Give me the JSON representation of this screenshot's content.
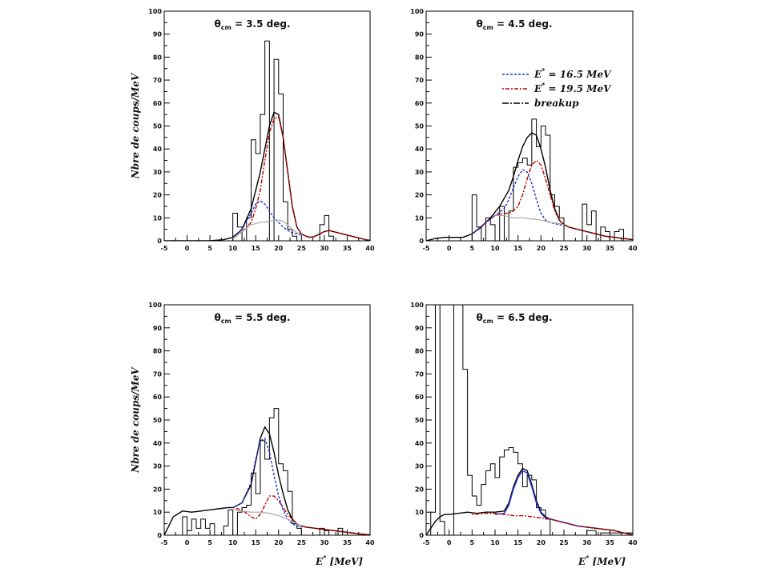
{
  "chart_data": [
    {
      "type": "line",
      "title": "θcm = 3.5 deg.",
      "title_main": "θ",
      "title_sub": "cm",
      "title_rest": " = 3.5 deg.",
      "ylabel": "Nbre de coups/MeV",
      "xlabel": "",
      "xlim": [
        -5,
        40
      ],
      "ylim": [
        0,
        100
      ],
      "xticks": [
        -5,
        0,
        5,
        10,
        15,
        20,
        25,
        30,
        35,
        40
      ],
      "yticks": [
        0,
        10,
        20,
        30,
        40,
        50,
        60,
        70,
        80,
        90,
        100
      ],
      "xtick_labels": [
        "-5",
        "0",
        "5",
        "10",
        "15",
        "20",
        "25",
        "30",
        "35",
        "40"
      ],
      "ytick_labels": [
        "0",
        "10",
        "20",
        "30",
        "40",
        "50",
        "60",
        "70",
        "80",
        "90",
        "100"
      ],
      "hist": {
        "edges": [
          -5,
          10,
          11,
          12,
          13,
          14,
          15,
          16,
          17,
          18,
          19,
          20,
          21,
          22,
          23,
          24,
          25,
          29,
          30,
          31,
          32,
          40
        ],
        "counts": [
          0,
          12,
          6,
          0,
          10,
          44,
          38,
          55,
          87,
          0,
          79,
          64,
          17,
          5,
          2,
          0,
          0,
          7,
          11,
          2,
          0
        ]
      },
      "series": [
        {
          "color": "#000000",
          "dash": "",
          "x": [
            -5,
            0,
            5,
            8,
            10,
            12,
            14,
            16,
            17,
            18,
            19,
            20,
            21,
            22,
            23,
            24,
            25,
            26,
            27,
            28,
            29,
            30,
            31,
            32,
            33,
            34,
            35,
            36,
            37,
            38,
            39,
            40
          ],
          "y": [
            0,
            0,
            0,
            0.5,
            1.5,
            5,
            14,
            30,
            40,
            50,
            56,
            55,
            45,
            30,
            15,
            6,
            3,
            2,
            1.5,
            2,
            3,
            4,
            4.5,
            4,
            3.5,
            3,
            2.5,
            2,
            1.5,
            1,
            0.5,
            0.2
          ]
        },
        {
          "color": "#c00000",
          "dash": "2,2,5,2",
          "x": [
            10,
            12,
            14,
            15,
            16,
            17,
            18,
            19,
            20,
            21,
            22,
            23,
            24,
            25,
            26,
            27,
            28,
            29,
            30,
            31,
            32,
            33,
            34,
            35,
            36,
            37,
            38,
            39,
            40
          ],
          "y": [
            1,
            4,
            8,
            14,
            22,
            35,
            47,
            53,
            54,
            45,
            30,
            15,
            6,
            3,
            2,
            1.5,
            2,
            3,
            4,
            4.5,
            4,
            3.5,
            3,
            2.5,
            2,
            1.5,
            1,
            0.5,
            0.2
          ]
        },
        {
          "color": "#2030d0",
          "dash": "3,2",
          "x": [
            10,
            12,
            14,
            15,
            16,
            17,
            18,
            19,
            20,
            21,
            22,
            23,
            24,
            25
          ],
          "y": [
            1,
            5,
            12,
            16,
            17.5,
            16,
            13,
            10,
            8,
            6,
            4.5,
            3.5,
            3,
            2.5
          ]
        },
        {
          "color": "#a8a8a8",
          "dash": "",
          "x": [
            10,
            12,
            14,
            16,
            18,
            20,
            21,
            22,
            23,
            24,
            25
          ],
          "y": [
            1,
            4,
            7,
            8,
            8.5,
            9,
            8.5,
            7,
            5,
            3.5,
            3
          ]
        }
      ],
      "legend": []
    },
    {
      "type": "line",
      "title": "θcm = 4.5 deg.",
      "title_main": "θ",
      "title_sub": "cm",
      "title_rest": " = 4.5 deg.",
      "ylabel": "",
      "xlabel": "",
      "xlim": [
        -5,
        40
      ],
      "ylim": [
        0,
        100
      ],
      "xticks": [
        -5,
        0,
        5,
        10,
        15,
        20,
        25,
        30,
        35,
        40
      ],
      "yticks": [
        0,
        10,
        20,
        30,
        40,
        50,
        60,
        70,
        80,
        90,
        100
      ],
      "xtick_labels": [
        "-5",
        "0",
        "5",
        "10",
        "15",
        "20",
        "25",
        "30",
        "35",
        "40"
      ],
      "ytick_labels": [
        "0",
        "10",
        "20",
        "30",
        "40",
        "50",
        "60",
        "70",
        "80",
        "90",
        "100"
      ],
      "hist": {
        "edges": [
          -5,
          5,
          6,
          7,
          8,
          9,
          10,
          11,
          12,
          13,
          14,
          15,
          16,
          17,
          18,
          19,
          20,
          21,
          22,
          23,
          24,
          25,
          29,
          30,
          31,
          32,
          33,
          34,
          35,
          36,
          37,
          38,
          40
        ],
        "counts": [
          0,
          20,
          6,
          0,
          10,
          7,
          0,
          15,
          0,
          13,
          32,
          34,
          36,
          33,
          53,
          41,
          50,
          46,
          20,
          15,
          10,
          0,
          16,
          7,
          13,
          0,
          6,
          4,
          0,
          4,
          5,
          0
        ]
      },
      "series": [
        {
          "color": "#000000",
          "dash": "",
          "x": [
            -5,
            -3,
            -1,
            1,
            3,
            5,
            7,
            9,
            11,
            13,
            14,
            15,
            16,
            17,
            18,
            19,
            20,
            21,
            22,
            23,
            24,
            25,
            26,
            28,
            30,
            32,
            34,
            36,
            38,
            40
          ],
          "y": [
            0,
            1,
            1.5,
            1.5,
            1.5,
            3,
            6,
            10,
            15,
            22,
            28,
            35,
            41,
            45,
            47,
            46,
            40,
            32,
            22,
            14,
            9,
            7,
            6,
            5,
            4,
            3,
            2,
            1.5,
            1,
            0.5
          ]
        },
        {
          "color": "#c00000",
          "dash": "2,2,5,2",
          "x": [
            5,
            8,
            10,
            12,
            13,
            14,
            15,
            16,
            17,
            18,
            19,
            20,
            21,
            22,
            23,
            24,
            25,
            26,
            28,
            30,
            32,
            34,
            36,
            38,
            40
          ],
          "y": [
            3,
            8,
            11,
            12,
            12,
            13,
            15,
            20,
            27,
            33,
            35,
            33,
            27,
            20,
            13,
            9,
            7,
            6,
            5,
            4,
            3,
            2,
            1.5,
            1,
            0.5
          ]
        },
        {
          "color": "#2030d0",
          "dash": "3,2",
          "x": [
            5,
            8,
            10,
            12,
            13,
            14,
            15,
            16,
            17,
            18,
            19,
            20,
            21,
            22,
            23,
            24,
            25
          ],
          "y": [
            3,
            8,
            11,
            14,
            18,
            23,
            28,
            31,
            30,
            25,
            18,
            12,
            9,
            8,
            7.5,
            7,
            7
          ]
        },
        {
          "color": "#a8a8a8",
          "dash": "",
          "x": [
            10,
            12,
            14,
            16,
            18,
            20,
            22,
            24,
            25
          ],
          "y": [
            11,
            11,
            10,
            10,
            9.5,
            9,
            8,
            7.5,
            7
          ]
        }
      ],
      "legend": [
        {
          "label": "E* = 16.5 MeV",
          "label_main": "E",
          "label_rest": " = 16.5 MeV",
          "color": "#2030d0",
          "dash": "3,2"
        },
        {
          "label": "E* = 19.5 MeV",
          "label_main": "E",
          "label_rest": " = 19.5 MeV",
          "color": "#c00000",
          "dash": "2,2,5,2"
        },
        {
          "label": "breakup",
          "label_main": "breakup",
          "label_rest": "",
          "color": "#000000",
          "dash": "8,2,2,2"
        }
      ]
    },
    {
      "type": "line",
      "title": "θcm = 5.5 deg.",
      "title_main": "θ",
      "title_sub": "cm",
      "title_rest": " = 5.5 deg.",
      "ylabel": "Nbre de coups/MeV",
      "xlabel": "E* [MeV]",
      "xlabel_main": "E",
      "xlabel_rest": "  [MeV]",
      "xlim": [
        -5,
        40
      ],
      "ylim": [
        0,
        100
      ],
      "xticks": [
        -5,
        0,
        5,
        10,
        15,
        20,
        25,
        30,
        35,
        40
      ],
      "yticks": [
        0,
        10,
        20,
        30,
        40,
        50,
        60,
        70,
        80,
        90,
        100
      ],
      "xtick_labels": [
        "-5",
        "0",
        "5",
        "10",
        "15",
        "20",
        "25",
        "30",
        "35",
        "40"
      ],
      "ytick_labels": [
        "0",
        "10",
        "20",
        "30",
        "40",
        "50",
        "60",
        "70",
        "80",
        "90",
        "100"
      ],
      "hist": {
        "edges": [
          -5,
          -1,
          0,
          1,
          2,
          3,
          4,
          5,
          6,
          8,
          9,
          10,
          11,
          12,
          13,
          14,
          15,
          16,
          17,
          18,
          19,
          20,
          21,
          22,
          23,
          24,
          25,
          29,
          30,
          31,
          33,
          34,
          40
        ],
        "counts": [
          0,
          8,
          2,
          7,
          3,
          7,
          3,
          5,
          0,
          4,
          11,
          0,
          10,
          12,
          13,
          27,
          18,
          41,
          33,
          51,
          55,
          31,
          28,
          19,
          5,
          3,
          0,
          3,
          2,
          0,
          3,
          0
        ]
      },
      "series": [
        {
          "color": "#000000",
          "dash": "",
          "x": [
            -5,
            -3,
            -1,
            1,
            3,
            5,
            7,
            9,
            10,
            12,
            14,
            15,
            16,
            17,
            18,
            19,
            20,
            21,
            22,
            23,
            24,
            25,
            26,
            28,
            30,
            32,
            34,
            36,
            38,
            40
          ],
          "y": [
            0,
            8,
            10.5,
            10,
            10.5,
            11,
            11.5,
            12,
            12,
            14,
            22,
            32,
            42,
            47,
            44,
            36,
            26,
            18,
            11,
            7,
            5,
            4,
            3.5,
            3,
            2.5,
            2,
            1.5,
            1,
            0.5,
            0.2
          ]
        },
        {
          "color": "#c00000",
          "dash": "2,2,5,2",
          "x": [
            10,
            12,
            14,
            15,
            16,
            17,
            18,
            19,
            20,
            21,
            22,
            23,
            24,
            25,
            26,
            28,
            30,
            32,
            34,
            36,
            38,
            40
          ],
          "y": [
            12,
            11,
            8,
            7,
            9,
            13,
            17,
            17,
            15,
            12,
            9,
            7,
            5,
            4,
            3.5,
            3,
            2.5,
            2,
            1.5,
            1,
            0.5,
            0.2
          ]
        },
        {
          "color": "#2030d0",
          "dash": "3,2",
          "x": [
            10,
            12,
            14,
            15,
            16,
            17,
            18,
            19,
            20,
            21,
            22,
            23,
            24,
            25
          ],
          "y": [
            12,
            14,
            23,
            33,
            41,
            42,
            36,
            26,
            17,
            11,
            7,
            5,
            4,
            3.5
          ]
        },
        {
          "color": "#a8a8a8",
          "dash": "",
          "x": [
            10,
            12,
            14,
            16,
            18,
            20,
            22,
            24,
            25
          ],
          "y": [
            11,
            10.5,
            10,
            10,
            9.5,
            8.5,
            7,
            5,
            4
          ]
        }
      ],
      "legend": []
    },
    {
      "type": "line",
      "title": "θcm = 6.5 deg.",
      "title_main": "θ",
      "title_sub": "cm",
      "title_rest": " = 6.5 deg.",
      "ylabel": "",
      "xlabel": "E* [MeV]",
      "xlabel_main": "E",
      "xlabel_rest": "  [MeV]",
      "xlim": [
        -5,
        40
      ],
      "ylim": [
        0,
        100
      ],
      "xticks": [
        -5,
        0,
        5,
        10,
        15,
        20,
        25,
        30,
        35,
        40
      ],
      "yticks": [
        0,
        10,
        20,
        30,
        40,
        50,
        60,
        70,
        80,
        90,
        100
      ],
      "xtick_labels": [
        "-5",
        "0",
        "5",
        "10",
        "15",
        "20",
        "25",
        "30",
        "35",
        "40"
      ],
      "ytick_labels": [
        "0",
        "10",
        "20",
        "30",
        "40",
        "50",
        "60",
        "70",
        "80",
        "90",
        "100"
      ],
      "hist": {
        "edges": [
          -5,
          -4,
          -3,
          -2,
          -1,
          0,
          1,
          2,
          3,
          4,
          5,
          6,
          7,
          8,
          9,
          10,
          11,
          12,
          13,
          14,
          15,
          16,
          17,
          18,
          19,
          20,
          21,
          22,
          30,
          32,
          33,
          40
        ],
        "counts": [
          0,
          10,
          100,
          6,
          0,
          0,
          100,
          100,
          72,
          26,
          17,
          13,
          22,
          28,
          31,
          25,
          34,
          37,
          38,
          36,
          31,
          21,
          26,
          24,
          12,
          11,
          7,
          0,
          2,
          0,
          1
        ]
      },
      "series": [
        {
          "color": "#000000",
          "dash": "",
          "x": [
            -5,
            -3,
            -2,
            -1,
            0,
            2,
            4,
            6,
            8,
            10,
            12,
            13,
            14,
            15,
            16,
            17,
            18,
            19,
            20,
            21,
            22,
            24,
            26,
            28,
            30,
            32,
            34,
            36,
            38,
            40
          ],
          "y": [
            0,
            6,
            8,
            9,
            9,
            9.5,
            10,
            9.5,
            10,
            10,
            10.5,
            14,
            21,
            26,
            29,
            28,
            22,
            15,
            10,
            8,
            7,
            6,
            5,
            4,
            3.5,
            3,
            2.5,
            2,
            1,
            0.2
          ]
        },
        {
          "color": "#2030d0",
          "dash": "",
          "x": [
            10,
            12,
            13,
            14,
            15,
            16,
            17,
            18,
            19,
            20,
            21,
            22,
            24,
            26,
            28,
            30
          ],
          "y": [
            9,
            9.5,
            13,
            20,
            25,
            28,
            27,
            21,
            14,
            9.5,
            7.5,
            7,
            6,
            5,
            4,
            3.5
          ]
        },
        {
          "color": "#c00000",
          "dash": "2,2,5,2",
          "x": [
            5,
            8,
            10,
            12,
            14,
            16,
            18,
            20,
            22,
            24,
            26,
            28,
            30,
            32,
            34,
            36,
            38,
            40
          ],
          "y": [
            9,
            9.5,
            9.5,
            9,
            8.5,
            8.5,
            8,
            7.5,
            7,
            6,
            5,
            4,
            3.5,
            3,
            2.5,
            2,
            1,
            0.2
          ]
        }
      ],
      "legend": []
    }
  ]
}
